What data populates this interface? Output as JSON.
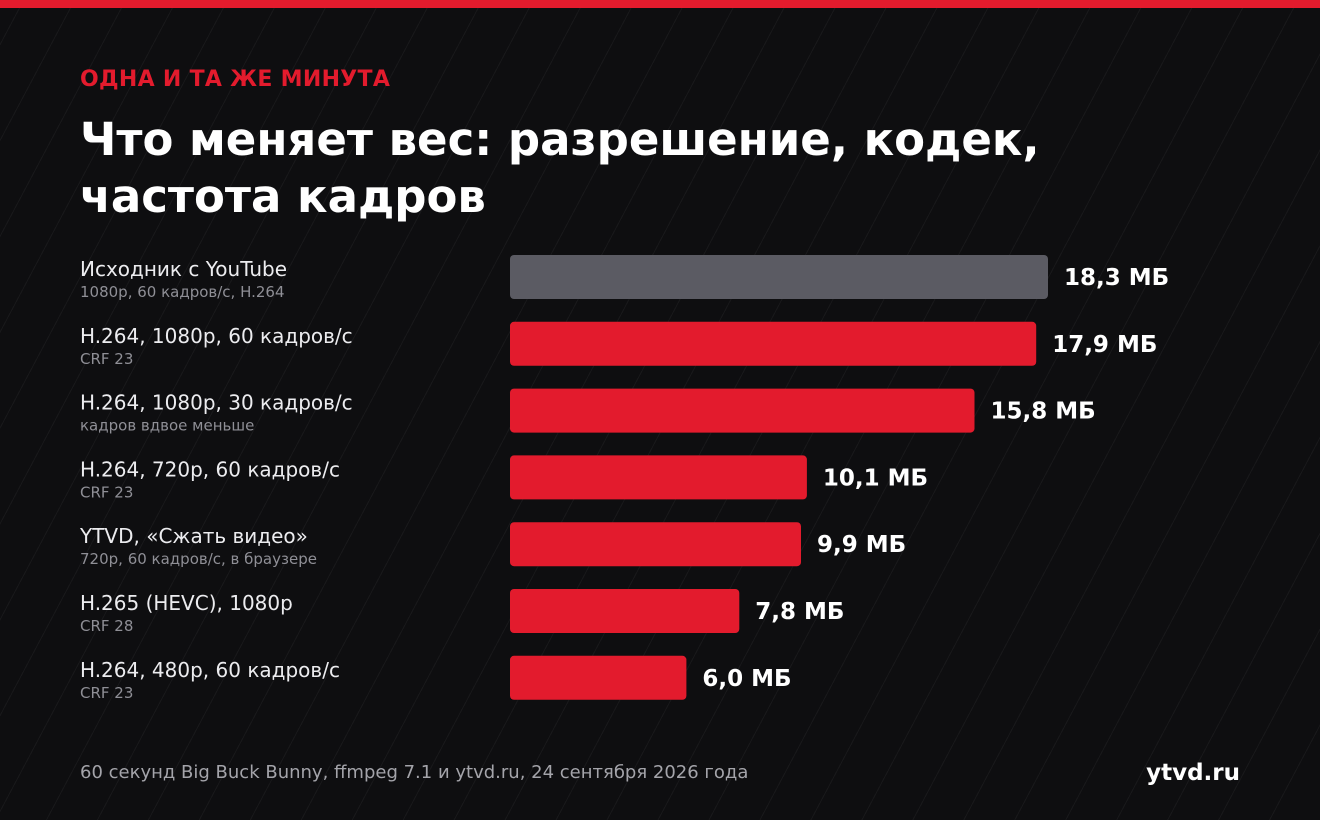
{
  "header": {
    "kicker": "ОДНА И ТА ЖЕ МИНУТА",
    "title_line1": "Что меняет вес: разрешение, кодек,",
    "title_line2": "частота кадров"
  },
  "footer": {
    "note": "60 секунд Big Buck Bunny, ffmpeg 7.1 и ytvd.ru, 24 сентября 2026 года",
    "brand": "ytvd.ru"
  },
  "colors": {
    "accent": "#e31b2d",
    "baseline_bar": "#5b5b63",
    "background": "#0e0e10"
  },
  "chart_data": {
    "type": "bar",
    "orientation": "horizontal",
    "unit": "МБ",
    "categories": [
      "Исходник с YouTube",
      "H.264, 1080p, 60 кадров/с",
      "H.264, 1080p, 30 кадров/с",
      "H.264, 720p, 60 кадров/с",
      "YTVD, «Сжать видео»",
      "H.265 (HEVC), 1080p",
      "H.264, 480p, 60 кадров/с"
    ],
    "subtitles": [
      "1080p, 60 кадров/с, H.264",
      "CRF 23",
      "кадров вдвое меньше",
      "CRF 23",
      "720p, 60 кадров/с, в браузере",
      "CRF 28",
      "CRF 23"
    ],
    "values": [
      18.3,
      17.9,
      15.8,
      10.1,
      9.9,
      7.8,
      6.0
    ],
    "value_labels": [
      "18,3 МБ",
      "17,9 МБ",
      "15,8 МБ",
      "10,1 МБ",
      "9,9 МБ",
      "7,8 МБ",
      "6,0 МБ"
    ],
    "highlight": [
      false,
      true,
      true,
      true,
      true,
      true,
      true
    ],
    "xlim": [
      0,
      18.3
    ],
    "grid": false
  }
}
